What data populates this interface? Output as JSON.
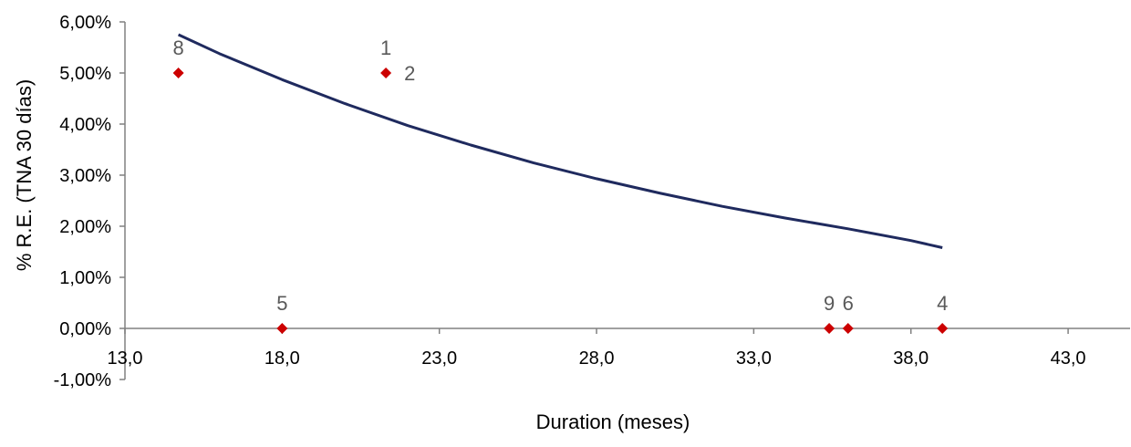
{
  "chart_data": {
    "type": "scatter",
    "title": "",
    "xlabel": "Duration (meses)",
    "ylabel": "% R.E. (TNA 30 días)",
    "xlim": [
      13.0,
      45.0
    ],
    "ylim": [
      -0.01,
      0.06
    ],
    "x_ticks": [
      13.0,
      18.0,
      23.0,
      28.0,
      33.0,
      38.0,
      43.0
    ],
    "x_tick_labels": [
      "13,0",
      "18,0",
      "23,0",
      "28,0",
      "33,0",
      "38,0",
      "43,0"
    ],
    "y_ticks": [
      -0.01,
      0.0,
      0.01,
      0.02,
      0.03,
      0.04,
      0.05,
      0.06
    ],
    "y_tick_labels": [
      "-1,00%",
      "0,00%",
      "1,00%",
      "2,00%",
      "3,00%",
      "4,00%",
      "5,00%",
      "6,00%"
    ],
    "grid": false,
    "legend": "none",
    "points": [
      {
        "label": "8",
        "x": 14.7,
        "y": 0.05
      },
      {
        "label": "1",
        "x": 21.3,
        "y": 0.05
      },
      {
        "label": "2",
        "x": 21.3,
        "y": 0.05
      },
      {
        "label": "5",
        "x": 18.0,
        "y": 0.0
      },
      {
        "label": "9",
        "x": 35.4,
        "y": 0.0
      },
      {
        "label": "6",
        "x": 36.0,
        "y": 0.0
      },
      {
        "label": "4",
        "x": 39.0,
        "y": 0.0
      }
    ],
    "trendline": {
      "x": [
        14.7,
        16.0,
        18.0,
        20.0,
        22.0,
        24.0,
        26.0,
        28.0,
        30.0,
        32.0,
        34.0,
        36.0,
        38.0,
        39.0
      ],
      "y": [
        0.0575,
        0.0538,
        0.0487,
        0.044,
        0.0397,
        0.0359,
        0.0324,
        0.0293,
        0.0265,
        0.0239,
        0.0216,
        0.0195,
        0.0172,
        0.0158
      ]
    },
    "colors": {
      "points": "#cc0000",
      "trendline": "#1f2a5e",
      "axis": "#808080",
      "text": "#000000",
      "point_label": "#595959"
    }
  }
}
